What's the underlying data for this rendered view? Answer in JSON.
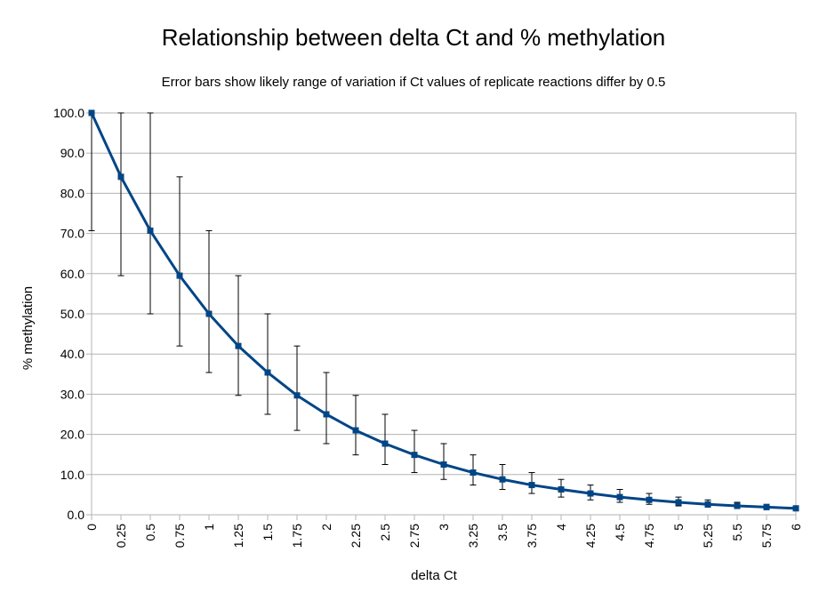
{
  "chart_data": {
    "type": "line",
    "title": "Relationship between delta Ct and % methylation",
    "subtitle": "Error bars show likely range of variation if Ct values of replicate reactions differ by 0.5",
    "xlabel": "delta Ct",
    "ylabel": "% methylation",
    "ylim": [
      0,
      100
    ],
    "y_ticks": [
      "0.0",
      "10.0",
      "20.0",
      "30.0",
      "40.0",
      "50.0",
      "60.0",
      "70.0",
      "80.0",
      "90.0",
      "100.0"
    ],
    "categories": [
      "0",
      "0.25",
      "0.5",
      "0.75",
      "1",
      "1.25",
      "1.5",
      "1.75",
      "2",
      "2.25",
      "2.5",
      "2.75",
      "3",
      "3.25",
      "3.5",
      "3.75",
      "4",
      "4.25",
      "4.5",
      "4.75",
      "5",
      "5.25",
      "5.5",
      "5.75",
      "6"
    ],
    "grid": true,
    "legend": "none",
    "series": [
      {
        "color": "#004586",
        "values": [
          100.0,
          84.1,
          70.7,
          59.5,
          50.0,
          42.0,
          35.4,
          29.7,
          25.0,
          21.0,
          17.7,
          14.9,
          12.5,
          10.5,
          8.8,
          7.4,
          6.3,
          5.3,
          4.4,
          3.7,
          3.1,
          2.6,
          2.2,
          1.9,
          1.6
        ],
        "error_low": [
          70.7,
          59.5,
          50.0,
          42.0,
          35.4,
          29.7,
          25.0,
          21.0,
          17.7,
          14.9,
          12.5,
          10.5,
          8.8,
          7.4,
          6.3,
          5.3,
          4.4,
          3.7,
          3.1,
          2.6,
          2.2,
          1.9,
          1.6,
          1.3,
          1.1
        ],
        "error_high": [
          100.0,
          100.0,
          100.0,
          84.1,
          70.7,
          59.5,
          50.0,
          42.0,
          35.4,
          29.7,
          25.0,
          21.0,
          17.7,
          14.9,
          12.5,
          10.5,
          8.8,
          7.4,
          6.3,
          5.3,
          4.4,
          3.7,
          3.1,
          2.6,
          2.2
        ]
      }
    ]
  }
}
